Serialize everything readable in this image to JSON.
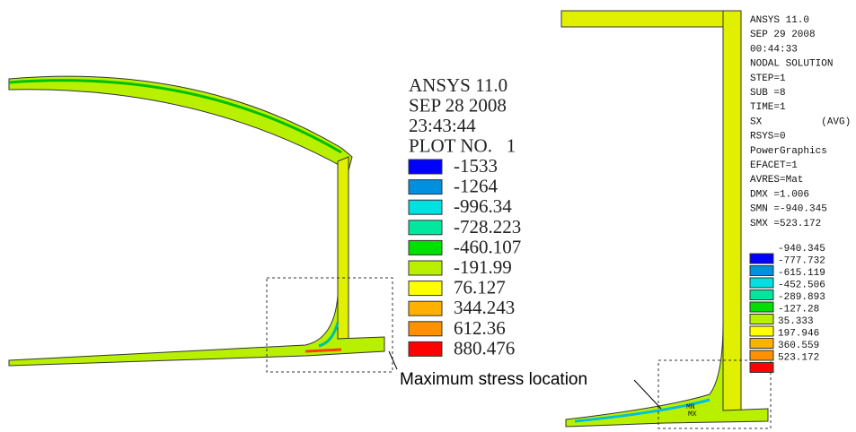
{
  "left_panel": {
    "info": [
      "ANSYS 11.0",
      "SEP 28 2008",
      "23:43:44",
      "PLOT NO.   1"
    ],
    "legend": [
      {
        "label": "-1533",
        "color": "#0000ff"
      },
      {
        "label": "-1264",
        "color": "#0090e0"
      },
      {
        "label": "-996.34",
        "color": "#00e0e0"
      },
      {
        "label": "-728.223",
        "color": "#00e8a0"
      },
      {
        "label": "-460.107",
        "color": "#00e000"
      },
      {
        "label": "-191.99",
        "color": "#b8f000"
      },
      {
        "label": "76.127",
        "color": "#ffff00"
      },
      {
        "label": "344.243",
        "color": "#ffb000"
      },
      {
        "label": "612.36",
        "color": "#ff9000"
      },
      {
        "label": "880.476",
        "color": "#ff0000"
      }
    ]
  },
  "right_panel": {
    "info": [
      "ANSYS 11.0",
      "SEP 29 2008",
      "00:44:33",
      "NODAL SOLUTION",
      "STEP=1",
      "SUB =8",
      "TIME=1",
      "SX          (AVG)",
      "RSYS=0",
      "PowerGraphics",
      "EFACET=1",
      "AVRES=Mat",
      "DMX =1.006",
      "SMN =-940.345",
      "SMX =523.172"
    ],
    "legend": [
      {
        "label": "-940.345",
        "color": "#0000ff"
      },
      {
        "label": "-777.732",
        "color": "#0090e0"
      },
      {
        "label": "-615.119",
        "color": "#00e0e0"
      },
      {
        "label": "-452.506",
        "color": "#00e8a0"
      },
      {
        "label": "-289.893",
        "color": "#00e000"
      },
      {
        "label": "-127.28",
        "color": "#b8f000"
      },
      {
        "label": "35.333",
        "color": "#ffff00"
      },
      {
        "label": "197.946",
        "color": "#ffb000"
      },
      {
        "label": "360.559",
        "color": "#ff9000"
      },
      {
        "label": "523.172",
        "color": "#ff0000"
      }
    ],
    "markers": [
      "MN",
      "MX"
    ]
  },
  "annotation": "Maximum stress location"
}
